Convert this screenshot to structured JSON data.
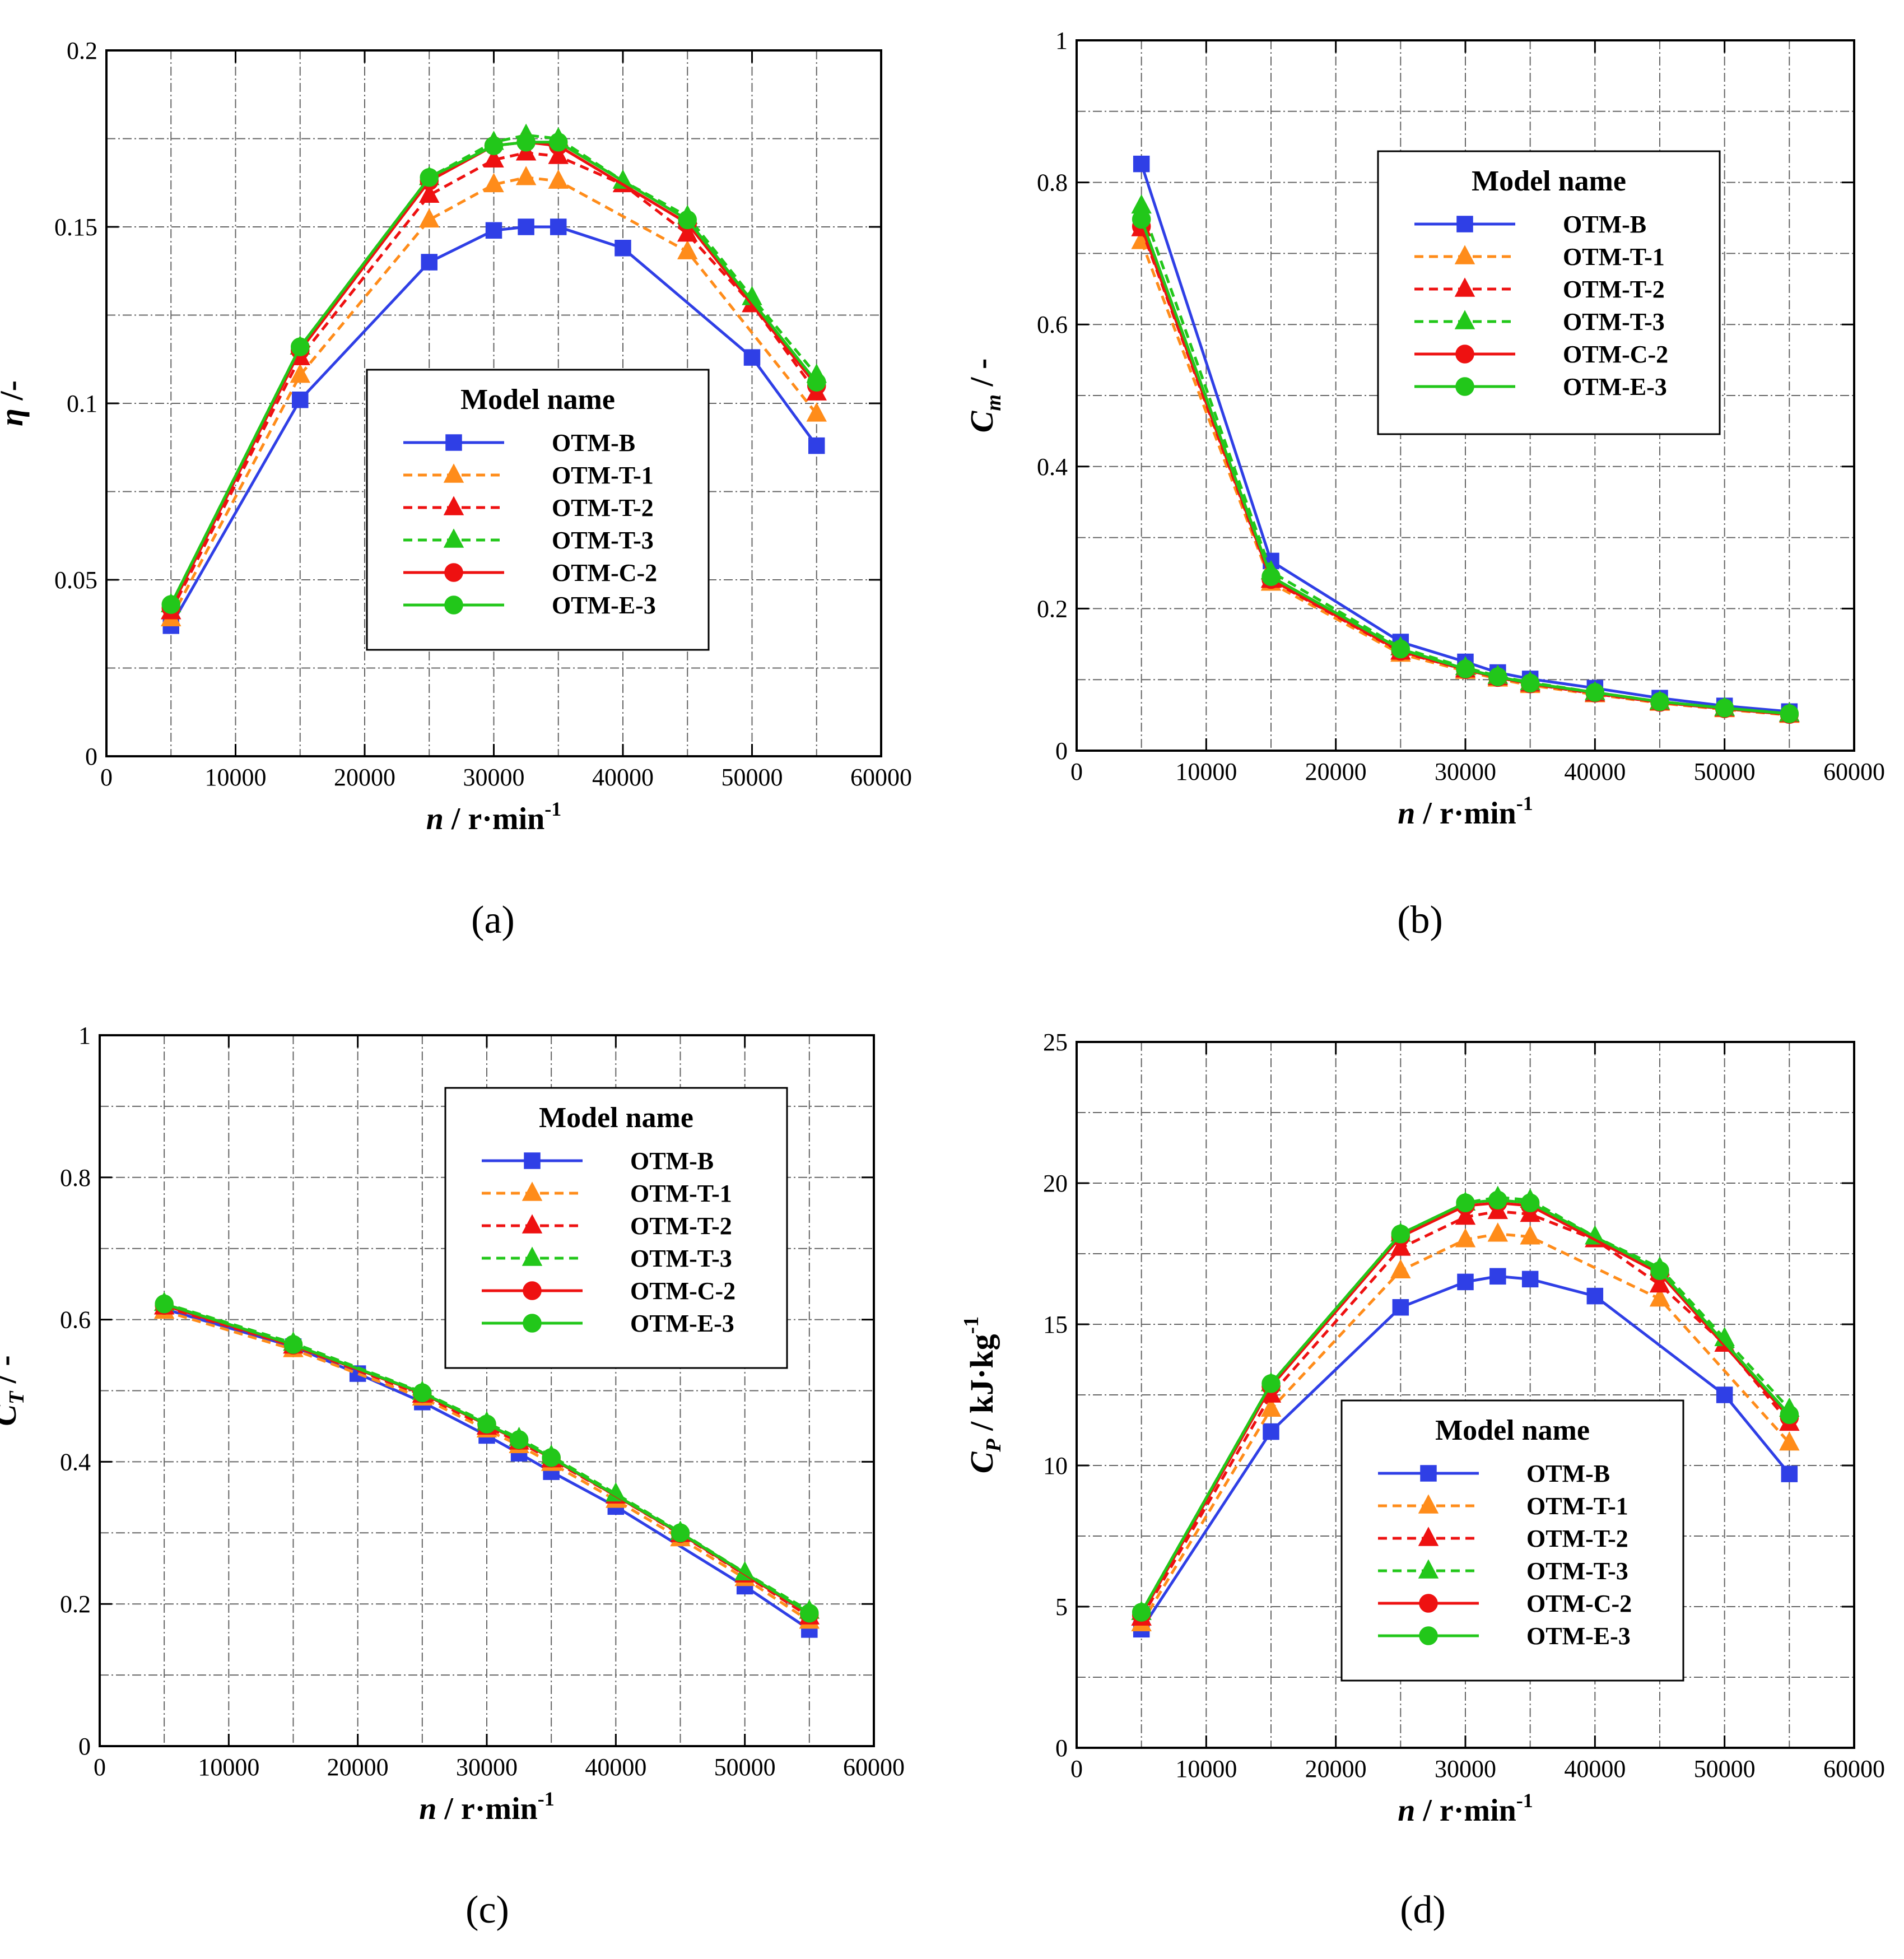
{
  "series_styles": [
    {
      "color": "#2f3fe6",
      "dash": "solid",
      "marker": "square"
    },
    {
      "color": "#ff8c1a",
      "dash": "dashed",
      "marker": "triangle"
    },
    {
      "color": "#ee1111",
      "dash": "dashed",
      "marker": "triangle"
    },
    {
      "color": "#22c71a",
      "dash": "dashed",
      "marker": "triangle"
    },
    {
      "color": "#ee1111",
      "dash": "solid",
      "marker": "circle"
    },
    {
      "color": "#22c71a",
      "dash": "solid",
      "marker": "circle"
    }
  ],
  "chart_data": [
    {
      "panel_label": "(a)",
      "type": "line",
      "ylabel_main": "η",
      "ylabel_sub": "",
      "ylabel_tail": " /-",
      "xlabel_main": "n",
      "xlabel_tail": " / r·min",
      "xlabel_sup": "-1",
      "xlim": [
        0,
        60000
      ],
      "ylim": [
        0,
        0.2
      ],
      "xticks": [
        "0",
        "10000",
        "20000",
        "30000",
        "40000",
        "50000",
        "60000"
      ],
      "yticks": [
        "0",
        "0.05",
        "0.1",
        "0.15",
        "0.2"
      ],
      "grid": true,
      "legend_title": "Model name",
      "legend_position": "center",
      "series": [
        {
          "name": "OTM-B",
          "x": [
            5000,
            15000,
            25000,
            30000,
            32500,
            35000,
            40000,
            50000,
            55000
          ],
          "values": [
            0.037,
            0.101,
            0.14,
            0.149,
            0.15,
            0.15,
            0.144,
            0.113,
            0.088
          ]
        },
        {
          "name": "OTM-T-1",
          "x": [
            5000,
            15000,
            25000,
            30000,
            32500,
            35000,
            45000,
            55000
          ],
          "values": [
            0.039,
            0.108,
            0.152,
            0.162,
            0.164,
            0.163,
            0.143,
            0.097
          ]
        },
        {
          "name": "OTM-T-2",
          "x": [
            5000,
            15000,
            25000,
            30000,
            32500,
            35000,
            40000,
            45000,
            50000,
            55000
          ],
          "values": [
            0.041,
            0.113,
            0.159,
            0.169,
            0.171,
            0.17,
            0.162,
            0.148,
            0.128,
            0.103
          ]
        },
        {
          "name": "OTM-T-3",
          "x": [
            5000,
            15000,
            25000,
            30000,
            32500,
            35000,
            40000,
            45000,
            50000,
            55000
          ],
          "values": [
            0.043,
            0.116,
            0.164,
            0.174,
            0.176,
            0.175,
            0.163,
            0.153,
            0.13,
            0.108
          ]
        },
        {
          "name": "OTM-C-2",
          "x": [
            5000,
            15000,
            25000,
            30000,
            32500,
            35000,
            45000,
            55000
          ],
          "values": [
            0.042,
            0.115,
            0.163,
            0.173,
            0.174,
            0.173,
            0.151,
            0.105
          ]
        },
        {
          "name": "OTM-E-3",
          "x": [
            5000,
            15000,
            25000,
            30000,
            32500,
            35000,
            45000,
            55000
          ],
          "values": [
            0.043,
            0.116,
            0.164,
            0.173,
            0.174,
            0.174,
            0.152,
            0.106
          ]
        }
      ]
    },
    {
      "panel_label": "(b)",
      "type": "line",
      "ylabel_main": "C",
      "ylabel_sub": "m",
      "ylabel_tail": " / -",
      "xlabel_main": "n",
      "xlabel_tail": " / r·min",
      "xlabel_sup": "-1",
      "xlim": [
        0,
        60000
      ],
      "ylim": [
        0,
        1
      ],
      "xticks": [
        "0",
        "10000",
        "20000",
        "30000",
        "40000",
        "50000",
        "60000"
      ],
      "yticks": [
        "0",
        "0.2",
        "0.4",
        "0.6",
        "0.8",
        "1"
      ],
      "grid": true,
      "legend_title": "Model name",
      "legend_position": "top-right",
      "series": [
        {
          "name": "OTM-B",
          "x": [
            5000,
            15000,
            25000,
            30000,
            32500,
            35000,
            40000,
            45000,
            50000,
            55000
          ],
          "values": [
            0.826,
            0.267,
            0.153,
            0.125,
            0.11,
            0.101,
            0.088,
            0.074,
            0.063,
            0.055
          ]
        },
        {
          "name": "OTM-T-1",
          "x": [
            5000,
            15000,
            25000,
            30000,
            32500,
            35000,
            40000,
            45000,
            50000,
            55000
          ],
          "values": [
            0.717,
            0.236,
            0.136,
            0.112,
            0.101,
            0.092,
            0.079,
            0.067,
            0.058,
            0.05
          ]
        },
        {
          "name": "OTM-T-2",
          "x": [
            5000,
            15000,
            25000,
            30000,
            32500,
            35000,
            40000,
            45000,
            50000,
            55000
          ],
          "values": [
            0.735,
            0.24,
            0.139,
            0.114,
            0.103,
            0.094,
            0.08,
            0.068,
            0.059,
            0.051
          ]
        },
        {
          "name": "OTM-T-3",
          "x": [
            5000,
            15000,
            25000,
            30000,
            32500,
            35000,
            40000,
            45000,
            50000,
            55000
          ],
          "values": [
            0.767,
            0.252,
            0.145,
            0.117,
            0.105,
            0.096,
            0.082,
            0.069,
            0.06,
            0.052
          ]
        },
        {
          "name": "OTM-C-2",
          "x": [
            5000,
            15000,
            25000,
            30000,
            32500,
            35000,
            40000,
            45000,
            50000,
            55000
          ],
          "values": [
            0.738,
            0.241,
            0.14,
            0.114,
            0.103,
            0.094,
            0.081,
            0.068,
            0.059,
            0.051
          ]
        },
        {
          "name": "OTM-E-3",
          "x": [
            5000,
            15000,
            25000,
            30000,
            32500,
            35000,
            40000,
            45000,
            50000,
            55000
          ],
          "values": [
            0.748,
            0.245,
            0.143,
            0.115,
            0.104,
            0.095,
            0.082,
            0.069,
            0.06,
            0.052
          ]
        }
      ]
    },
    {
      "panel_label": "(c)",
      "type": "line",
      "ylabel_main": "C",
      "ylabel_sub": "T",
      "ylabel_tail": " / -",
      "xlabel_main": "n",
      "xlabel_tail": " / r·min",
      "xlabel_sup": "-1",
      "xlim": [
        0,
        60000
      ],
      "ylim": [
        0,
        1
      ],
      "xticks": [
        "0",
        "10000",
        "20000",
        "30000",
        "40000",
        "50000",
        "60000"
      ],
      "yticks": [
        "0",
        "0.2",
        "0.4",
        "0.6",
        "0.8",
        "1"
      ],
      "grid": true,
      "legend_title": "Model name",
      "legend_position": "top-right",
      "series": [
        {
          "name": "OTM-B",
          "x": [
            5000,
            15000,
            20000,
            25000,
            30000,
            32500,
            35000,
            40000,
            50000,
            55000
          ],
          "values": [
            0.615,
            0.562,
            0.524,
            0.484,
            0.437,
            0.412,
            0.386,
            0.337,
            0.225,
            0.164
          ]
        },
        {
          "name": "OTM-T-1",
          "x": [
            5000,
            15000,
            25000,
            30000,
            32500,
            35000,
            40000,
            45000,
            50000,
            55000
          ],
          "values": [
            0.612,
            0.558,
            0.49,
            0.445,
            0.423,
            0.398,
            0.346,
            0.292,
            0.236,
            0.176
          ]
        },
        {
          "name": "OTM-T-2",
          "x": [
            5000,
            15000,
            25000,
            30000,
            32500,
            35000,
            40000,
            45000,
            50000,
            55000
          ],
          "values": [
            0.618,
            0.563,
            0.494,
            0.449,
            0.428,
            0.403,
            0.352,
            0.298,
            0.241,
            0.182
          ]
        },
        {
          "name": "OTM-T-3",
          "x": [
            5000,
            15000,
            25000,
            30000,
            32500,
            35000,
            40000,
            45000,
            50000,
            55000
          ],
          "values": [
            0.623,
            0.567,
            0.498,
            0.455,
            0.433,
            0.408,
            0.355,
            0.301,
            0.244,
            0.19
          ]
        },
        {
          "name": "OTM-C-2",
          "x": [
            5000,
            15000,
            25000,
            30000,
            32500,
            35000,
            45000,
            55000
          ],
          "values": [
            0.62,
            0.564,
            0.496,
            0.452,
            0.43,
            0.405,
            0.299,
            0.185
          ]
        },
        {
          "name": "OTM-E-3",
          "x": [
            5000,
            15000,
            25000,
            30000,
            32500,
            35000,
            45000,
            55000
          ],
          "values": [
            0.622,
            0.565,
            0.497,
            0.453,
            0.431,
            0.406,
            0.3,
            0.187
          ]
        }
      ]
    },
    {
      "panel_label": "(d)",
      "type": "line",
      "ylabel_main": "C",
      "ylabel_sub": "P",
      "ylabel_tail": " / kJ·kg",
      "ylabel_sup": "-1",
      "xlabel_main": "n",
      "xlabel_tail": " / r·min",
      "xlabel_sup": "-1",
      "xlim": [
        0,
        60000
      ],
      "ylim": [
        0,
        25
      ],
      "xticks": [
        "0",
        "10000",
        "20000",
        "30000",
        "40000",
        "50000",
        "60000"
      ],
      "yticks": [
        "0",
        "5",
        "10",
        "15",
        "20",
        "25"
      ],
      "grid": true,
      "legend_title": "Model name",
      "legend_position": "bottom-right",
      "series": [
        {
          "name": "OTM-B",
          "x": [
            5000,
            15000,
            25000,
            30000,
            32500,
            35000,
            40000,
            50000,
            55000
          ],
          "values": [
            4.2,
            11.2,
            15.6,
            16.5,
            16.7,
            16.6,
            16.0,
            12.5,
            9.7
          ]
        },
        {
          "name": "OTM-T-1",
          "x": [
            5000,
            15000,
            25000,
            30000,
            32500,
            35000,
            45000,
            55000
          ],
          "values": [
            4.4,
            12.0,
            16.9,
            18.0,
            18.2,
            18.1,
            15.9,
            10.8
          ]
        },
        {
          "name": "OTM-T-2",
          "x": [
            5000,
            15000,
            25000,
            30000,
            32500,
            35000,
            40000,
            45000,
            50000,
            55000
          ],
          "values": [
            4.6,
            12.5,
            17.7,
            18.8,
            19.0,
            18.9,
            18.0,
            16.4,
            14.3,
            11.5
          ]
        },
        {
          "name": "OTM-T-3",
          "x": [
            5000,
            15000,
            25000,
            30000,
            32500,
            35000,
            40000,
            45000,
            50000,
            55000
          ],
          "values": [
            4.8,
            12.9,
            18.2,
            19.3,
            19.5,
            19.4,
            18.1,
            17.0,
            14.5,
            12.0
          ]
        },
        {
          "name": "OTM-C-2",
          "x": [
            5000,
            15000,
            25000,
            30000,
            32500,
            35000,
            45000,
            55000
          ],
          "values": [
            4.7,
            12.8,
            18.1,
            19.2,
            19.3,
            19.2,
            16.8,
            11.7
          ]
        },
        {
          "name": "OTM-E-3",
          "x": [
            5000,
            15000,
            25000,
            30000,
            32500,
            35000,
            45000,
            55000
          ],
          "values": [
            4.8,
            12.9,
            18.2,
            19.3,
            19.4,
            19.3,
            16.9,
            11.8
          ]
        }
      ]
    }
  ]
}
